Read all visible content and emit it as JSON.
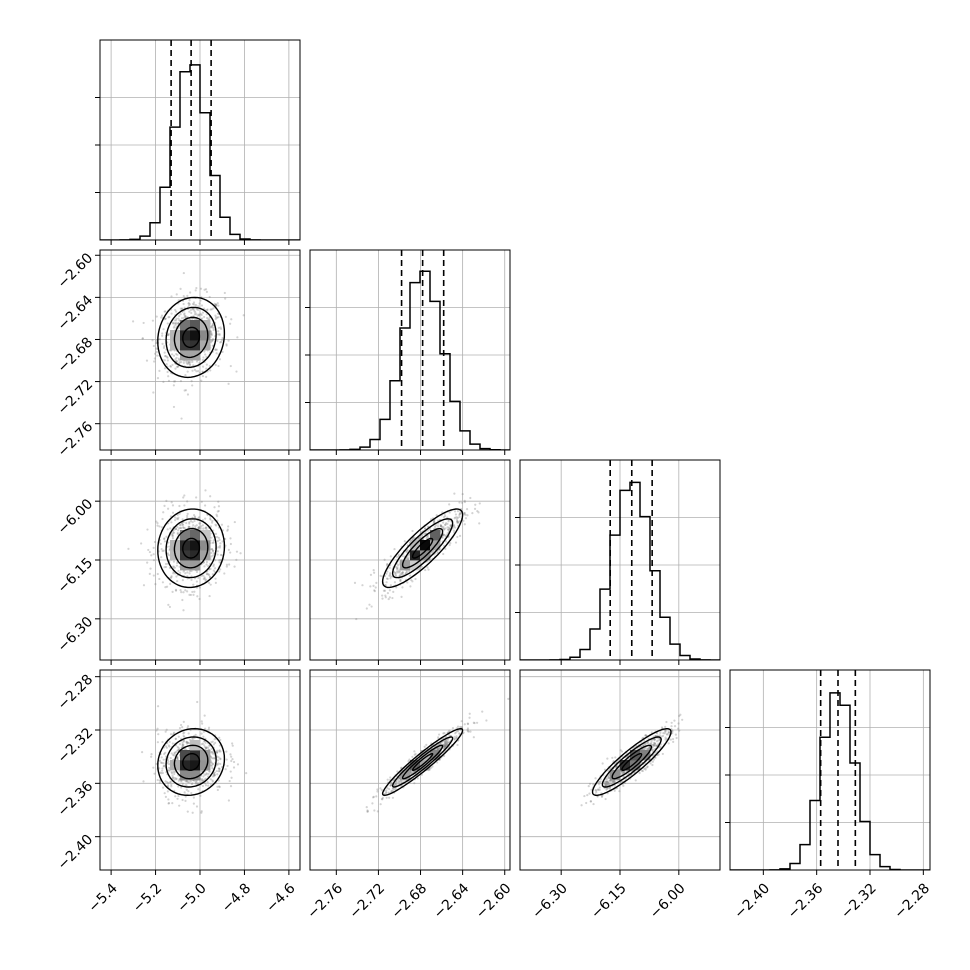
{
  "chart_data": {
    "type": "corner",
    "grid": true,
    "colors": {
      "line": "#000000",
      "grid": "#b0b0b0",
      "scatter": "#808080"
    },
    "parameters": [
      {
        "range": [
          -5.45,
          -4.55
        ],
        "ticks": [
          -5.4,
          -5.2,
          -5.0,
          -4.8,
          -4.6
        ],
        "tick_labels": [
          "−5.4",
          "−5.2",
          "−5.0",
          "−4.8",
          "−4.6"
        ],
        "quantiles": [
          -5.13,
          -5.04,
          -4.95
        ],
        "mean": -5.04,
        "sd": 0.075
      },
      {
        "range": [
          -2.785,
          -2.595
        ],
        "ticks": [
          -2.76,
          -2.72,
          -2.68,
          -2.64,
          -2.6
        ],
        "tick_labels": [
          "−2.76",
          "−2.72",
          "−2.68",
          "−2.64",
          "−2.60"
        ],
        "quantiles": [
          -2.698,
          -2.678,
          -2.658
        ],
        "mean": -2.678,
        "sd": 0.019
      },
      {
        "range": [
          -6.405,
          -5.895
        ],
        "ticks": [
          -6.3,
          -6.15,
          -6.0
        ],
        "tick_labels": [
          "−6.30",
          "−6.15",
          "−6.00"
        ],
        "quantiles": [
          -6.175,
          -6.12,
          -6.068
        ],
        "mean": -6.12,
        "sd": 0.05
      },
      {
        "range": [
          -2.425,
          -2.275
        ],
        "ticks": [
          -2.4,
          -2.36,
          -2.32,
          -2.28
        ],
        "tick_labels": [
          "−2.40",
          "−2.36",
          "−2.32",
          "−2.28"
        ],
        "quantiles": [
          -2.357,
          -2.344,
          -2.331
        ],
        "mean": -2.344,
        "sd": 0.0125
      }
    ],
    "correlations": {
      "1-0": 0.1,
      "2-0": 0.05,
      "2-1": 0.85,
      "3-0": 0.1,
      "3-1": 0.95,
      "3-2": 0.9
    }
  }
}
